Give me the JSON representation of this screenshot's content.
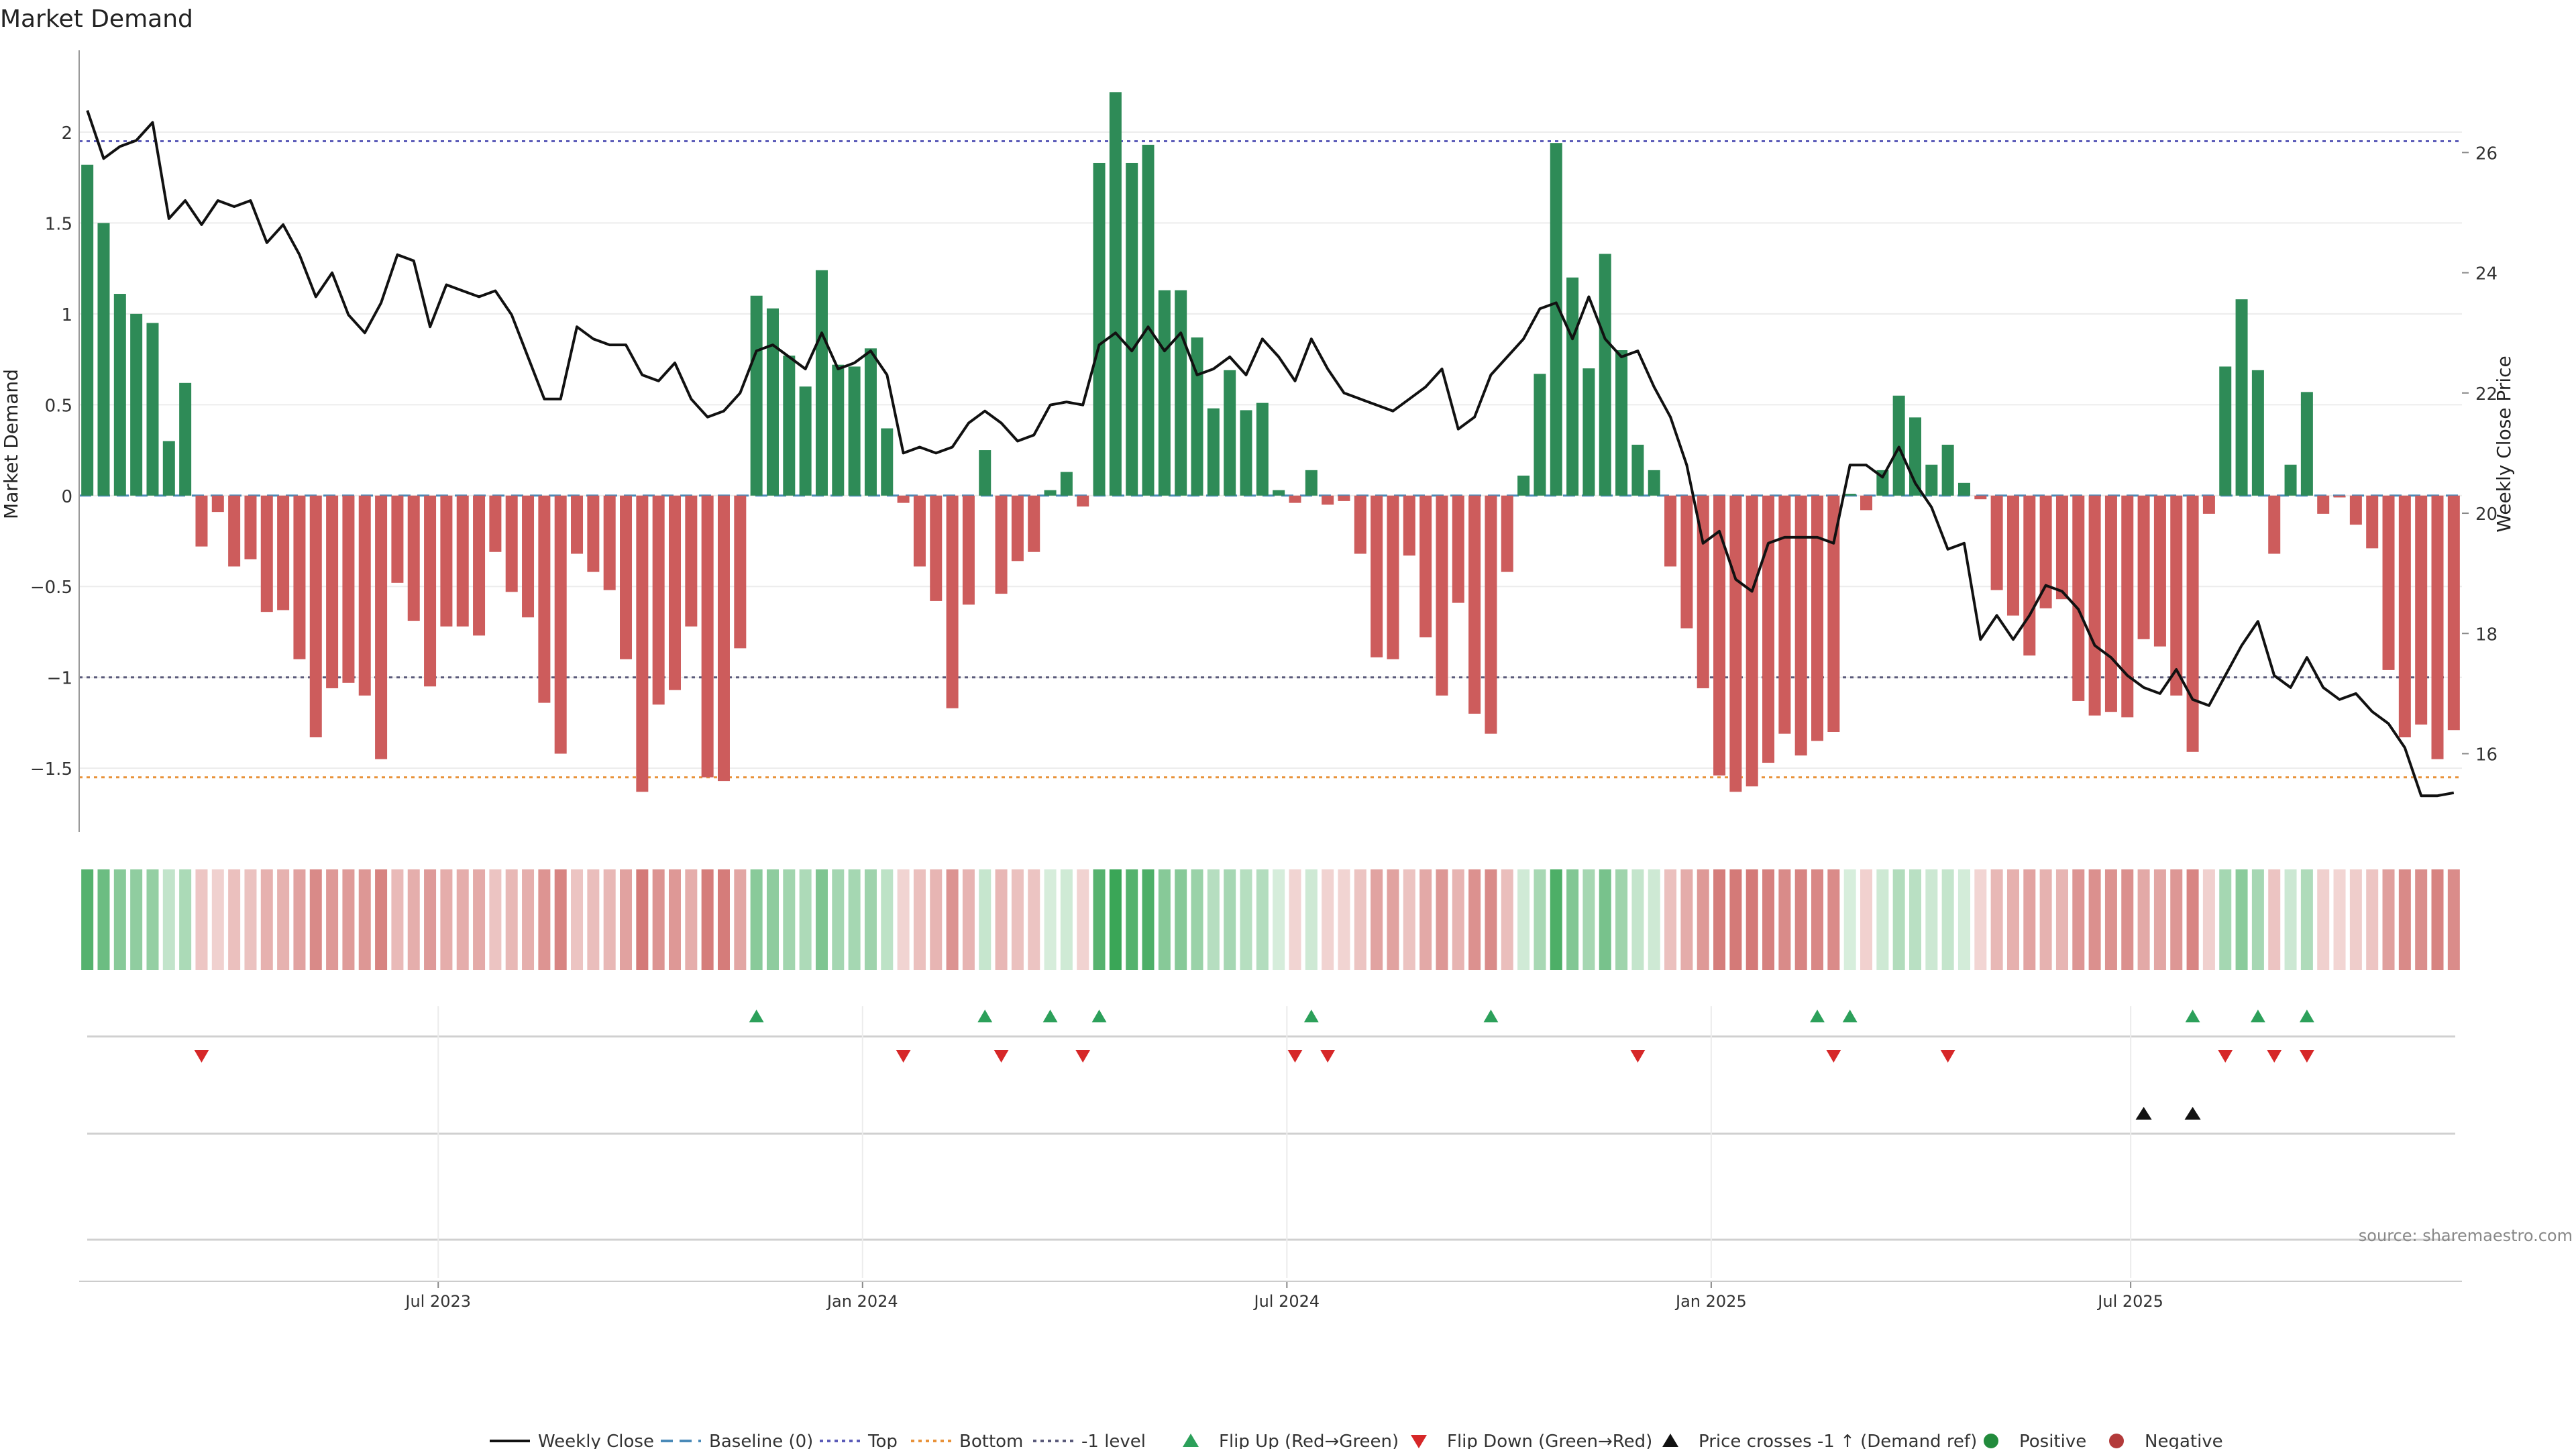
{
  "chart_data": {
    "type": "bar",
    "title": "Market Demand",
    "ylabel": "Market Demand",
    "y2label": "Weekly Close Price",
    "ylim": [
      -1.85,
      2.45
    ],
    "y2lim": [
      14.7,
      27.7
    ],
    "yticks": [
      "2",
      "1.5",
      "1",
      "0.5",
      "0",
      "−0.5",
      "−1",
      "−1.5"
    ],
    "ytick_values": [
      2,
      1.5,
      1,
      0.5,
      0,
      -0.5,
      -1,
      -1.5
    ],
    "y2ticks": [
      "26",
      "24",
      "22",
      "20",
      "18",
      "16"
    ],
    "y2tick_values": [
      26,
      24,
      22,
      20,
      18,
      16
    ],
    "x_start": "2023-01-02",
    "x_ticks": [
      {
        "label": "Jul 2023",
        "week": 22
      },
      {
        "label": "Jan 2024",
        "week": 48
      },
      {
        "label": "Jul 2024",
        "week": 74
      },
      {
        "label": "Jan 2025",
        "week": 100
      },
      {
        "label": "Jul 2025",
        "week": 125.7
      }
    ],
    "levels": {
      "top": 1.95,
      "bottom": -1.55,
      "minus_one": -1.0,
      "baseline": 0
    },
    "level_colors": {
      "top": "#5b5bb8",
      "bottom": "#e8923a",
      "minus_one": "#5a5a7a",
      "baseline": "#4a8ab8"
    },
    "colors": {
      "positive": "#2e8b57",
      "negative": "#cd5c5c",
      "line": "#111111",
      "flip_up": "#2ca05a",
      "flip_down": "#d62728",
      "cross": "#111111"
    },
    "demand": [
      1.82,
      1.5,
      1.11,
      1.0,
      0.95,
      0.3,
      0.62,
      -0.28,
      -0.09,
      -0.39,
      -0.35,
      -0.64,
      -0.63,
      -0.9,
      -1.33,
      -1.06,
      -1.03,
      -1.1,
      -1.45,
      -0.48,
      -0.69,
      -1.05,
      -0.72,
      -0.72,
      -0.77,
      -0.31,
      -0.53,
      -0.67,
      -1.14,
      -1.42,
      -0.32,
      -0.42,
      -0.52,
      -0.9,
      -1.63,
      -1.15,
      -1.07,
      -0.72,
      -1.55,
      -1.57,
      -0.84,
      1.1,
      1.03,
      0.77,
      0.6,
      1.24,
      0.72,
      0.71,
      0.81,
      0.37,
      -0.04,
      -0.39,
      -0.58,
      -1.17,
      -0.6,
      0.25,
      -0.54,
      -0.36,
      -0.31,
      0.03,
      0.13,
      -0.06,
      1.83,
      2.22,
      1.83,
      1.93,
      1.13,
      1.13,
      0.87,
      0.48,
      0.69,
      0.47,
      0.51,
      0.03,
      -0.04,
      0.14,
      -0.05,
      -0.03,
      -0.32,
      -0.89,
      -0.9,
      -0.33,
      -0.78,
      -1.1,
      -0.59,
      -1.2,
      -1.31,
      -0.42,
      0.11,
      0.67,
      1.94,
      1.2,
      0.7,
      1.33,
      0.8,
      0.28,
      0.14,
      -0.39,
      -0.73,
      -1.06,
      -1.54,
      -1.63,
      -1.6,
      -1.47,
      -1.31,
      -1.43,
      -1.35,
      -1.3,
      0.01,
      -0.08,
      0.14,
      0.55,
      0.43,
      0.17,
      0.28,
      0.07,
      -0.02,
      -0.52,
      -0.66,
      -0.88,
      -0.62,
      -0.57,
      -1.13,
      -1.21,
      -1.19,
      -1.22,
      -0.79,
      -0.83,
      -1.1,
      -1.41,
      -0.1,
      0.71,
      1.08,
      0.69,
      -0.32,
      0.17,
      0.57,
      -0.1,
      -0.01,
      -0.16,
      -0.29,
      -0.96,
      -1.33,
      -1.26,
      -1.45,
      -1.29
    ],
    "price": [
      26.7,
      25.9,
      26.1,
      26.2,
      26.5,
      24.9,
      25.2,
      24.8,
      25.2,
      25.1,
      25.2,
      24.5,
      24.8,
      24.3,
      23.6,
      24.0,
      23.3,
      23.0,
      23.5,
      24.3,
      24.2,
      23.1,
      23.8,
      23.7,
      23.6,
      23.7,
      23.3,
      22.6,
      21.9,
      21.9,
      23.1,
      22.9,
      22.8,
      22.8,
      22.3,
      22.2,
      22.5,
      21.9,
      21.6,
      21.7,
      22.0,
      22.7,
      22.8,
      22.6,
      22.4,
      23.0,
      22.4,
      22.5,
      22.7,
      22.3,
      21.0,
      21.1,
      21.0,
      21.1,
      21.5,
      21.7,
      21.5,
      21.2,
      21.3,
      21.8,
      21.85,
      21.8,
      22.8,
      23.0,
      22.7,
      23.1,
      22.7,
      23.0,
      22.3,
      22.4,
      22.6,
      22.3,
      22.9,
      22.6,
      22.2,
      22.9,
      22.4,
      22.0,
      21.9,
      21.8,
      21.7,
      21.9,
      22.1,
      22.4,
      21.4,
      21.6,
      22.3,
      22.6,
      22.9,
      23.4,
      23.5,
      22.9,
      23.6,
      22.9,
      22.6,
      22.7,
      22.1,
      21.6,
      20.8,
      19.5,
      19.7,
      18.9,
      18.7,
      19.5,
      19.6,
      19.6,
      19.6,
      19.5,
      20.8,
      20.8,
      20.6,
      21.1,
      20.5,
      20.1,
      19.4,
      19.5,
      17.9,
      18.3,
      17.9,
      18.3,
      18.8,
      18.7,
      18.4,
      17.8,
      17.6,
      17.3,
      17.1,
      17.0,
      17.4,
      16.9,
      16.8,
      17.3,
      17.8,
      18.2,
      17.3,
      17.1,
      17.6,
      17.1,
      16.9,
      17.0,
      16.7,
      16.5,
      16.1,
      15.3,
      15.3,
      15.35
    ],
    "flip_up_weeks": [
      41,
      55,
      59,
      62,
      75,
      86,
      106,
      108,
      129,
      133,
      136
    ],
    "flip_down_weeks": [
      7,
      50,
      56,
      61,
      74,
      76,
      95,
      107,
      114,
      131,
      134,
      136
    ],
    "price_cross_weeks": [
      126,
      129
    ],
    "legend": [
      "Weekly Close",
      "Baseline (0)",
      "Top",
      "Bottom",
      "-1 level",
      "Flip Up (Red→Green)",
      "Flip Down (Green→Red)",
      "Price crosses -1 ↑ (Demand ref)",
      "Positive",
      "Negative"
    ],
    "source": "source: sharemaestro.com"
  }
}
